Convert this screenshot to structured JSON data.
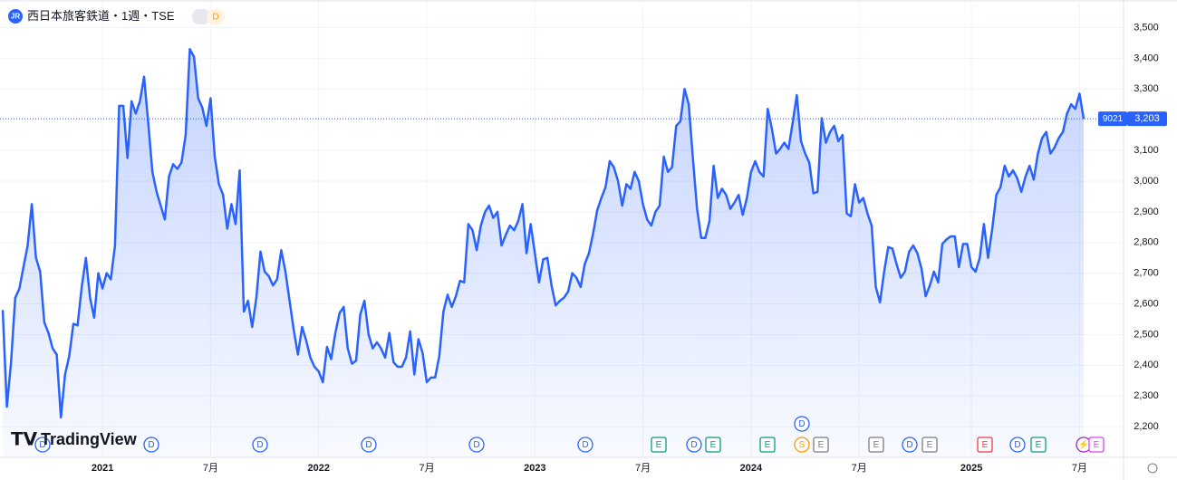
{
  "header": {
    "icon": "JR",
    "title": "西日本旅客鉄道・1週・TSE",
    "badge": "D"
  },
  "watermark": "TradingView",
  "chart_data": {
    "type": "area",
    "categories": [
      null,
      null,
      null,
      null,
      null,
      null,
      null,
      null,
      null,
      null,
      null,
      null,
      null,
      null,
      null,
      null,
      null,
      null,
      null,
      null,
      null,
      null,
      null,
      null,
      "2021",
      null,
      null,
      null,
      null,
      null,
      null,
      null,
      null,
      null,
      null,
      null,
      null,
      null,
      null,
      null,
      null,
      null,
      null,
      null,
      null,
      null,
      null,
      null,
      null,
      null,
      "7月",
      null,
      null,
      null,
      null,
      null,
      null,
      null,
      null,
      null,
      null,
      null,
      null,
      null,
      null,
      null,
      null,
      null,
      null,
      null,
      null,
      null,
      null,
      null,
      null,
      null,
      "2022",
      null,
      null,
      null,
      null,
      null,
      null,
      null,
      null,
      null,
      null,
      null,
      null,
      null,
      null,
      null,
      null,
      null,
      null,
      null,
      null,
      null,
      null,
      null,
      null,
      null,
      "7月",
      null,
      null,
      null,
      null,
      null,
      null,
      null,
      null,
      null,
      null,
      null,
      null,
      null,
      null,
      null,
      null,
      null,
      null,
      null,
      null,
      null,
      null,
      null,
      null,
      null,
      "2023",
      null,
      null,
      null,
      null,
      null,
      null,
      null,
      null,
      null,
      null,
      null,
      null,
      null,
      null,
      null,
      null,
      null,
      null,
      null,
      null,
      null,
      null,
      null,
      null,
      null,
      "7月",
      null,
      null,
      null,
      null,
      null,
      null,
      null,
      null,
      null,
      null,
      null,
      null,
      null,
      null,
      null,
      null,
      null,
      null,
      null,
      null,
      null,
      null,
      null,
      null,
      null,
      "2024",
      null,
      null,
      null,
      null,
      null,
      null,
      null,
      null,
      null,
      null,
      null,
      null,
      null,
      null,
      null,
      null,
      null,
      null,
      null,
      null,
      null,
      null,
      null,
      null,
      null,
      "7月",
      null,
      null,
      null,
      null,
      null,
      null,
      null,
      null,
      null,
      null,
      null,
      null,
      null,
      null,
      null,
      null,
      null,
      null,
      null,
      null,
      null,
      null,
      null,
      null,
      null,
      null,
      "2025",
      null,
      null,
      null,
      null,
      null,
      null,
      null,
      null,
      null,
      null,
      null,
      null,
      null,
      null,
      null,
      null,
      null,
      null,
      null,
      null,
      null,
      null,
      null,
      null,
      null,
      "7月",
      null
    ],
    "series": [
      {
        "name": "9021",
        "color": "#2962ff",
        "values": [
          2580,
          2265,
          2410,
          2620,
          2650,
          2720,
          2790,
          2925,
          2750,
          2705,
          2540,
          2505,
          2455,
          2435,
          2230,
          2370,
          2430,
          2535,
          2530,
          2655,
          2750,
          2620,
          2555,
          2700,
          2650,
          2700,
          2680,
          2790,
          3245,
          3245,
          3075,
          3260,
          3220,
          3260,
          3340,
          3190,
          3030,
          2965,
          2920,
          2875,
          3015,
          3055,
          3040,
          3060,
          3150,
          3430,
          3405,
          3270,
          3240,
          3180,
          3270,
          3080,
          2990,
          2955,
          2845,
          2925,
          2860,
          3035,
          2575,
          2610,
          2525,
          2620,
          2770,
          2705,
          2690,
          2660,
          2680,
          2775,
          2705,
          2610,
          2515,
          2435,
          2525,
          2480,
          2425,
          2395,
          2380,
          2345,
          2460,
          2420,
          2505,
          2570,
          2590,
          2455,
          2405,
          2415,
          2565,
          2610,
          2500,
          2455,
          2475,
          2455,
          2425,
          2505,
          2410,
          2395,
          2395,
          2425,
          2510,
          2370,
          2485,
          2440,
          2345,
          2360,
          2360,
          2430,
          2575,
          2630,
          2590,
          2625,
          2675,
          2670,
          2860,
          2840,
          2775,
          2855,
          2900,
          2920,
          2880,
          2900,
          2790,
          2825,
          2855,
          2840,
          2870,
          2925,
          2765,
          2860,
          2765,
          2670,
          2745,
          2750,
          2660,
          2595,
          2610,
          2620,
          2640,
          2700,
          2685,
          2655,
          2730,
          2765,
          2830,
          2905,
          2945,
          2980,
          3065,
          3045,
          3000,
          2920,
          2990,
          2975,
          3030,
          3000,
          2925,
          2875,
          2855,
          2900,
          2920,
          3080,
          3030,
          3045,
          3180,
          3195,
          3300,
          3250,
          3075,
          2910,
          2815,
          2815,
          2870,
          3050,
          2945,
          2975,
          2955,
          2910,
          2930,
          2955,
          2890,
          2945,
          3030,
          3065,
          3030,
          3015,
          3235,
          3170,
          3090,
          3105,
          3125,
          3105,
          3190,
          3280,
          3130,
          3090,
          3060,
          2960,
          2965,
          3205,
          3125,
          3160,
          3180,
          3130,
          3150,
          2895,
          2885,
          2990,
          2930,
          2945,
          2895,
          2855,
          2655,
          2605,
          2705,
          2785,
          2780,
          2730,
          2685,
          2705,
          2770,
          2790,
          2765,
          2715,
          2625,
          2660,
          2705,
          2670,
          2795,
          2810,
          2820,
          2820,
          2720,
          2795,
          2795,
          2720,
          2705,
          2750,
          2860,
          2750,
          2845,
          2955,
          2980,
          3050,
          3015,
          3035,
          3010,
          2965,
          3015,
          3050,
          3005,
          3090,
          3140,
          3160,
          3090,
          3110,
          3140,
          3160,
          3220,
          3250,
          3235,
          3285,
          3203
        ]
      }
    ],
    "price_line": {
      "value": 3203,
      "label": "3,203"
    },
    "ylim": [
      2100,
      3590
    ],
    "yticks": [
      {
        "value": 2200,
        "label": "2,200"
      },
      {
        "value": 2300,
        "label": "2,300"
      },
      {
        "value": 2400,
        "label": "2,400"
      },
      {
        "value": 2500,
        "label": "2,500"
      },
      {
        "value": 2600,
        "label": "2,600"
      },
      {
        "value": 2700,
        "label": "2,700"
      },
      {
        "value": 2800,
        "label": "2,800"
      },
      {
        "value": 2900,
        "label": "2,900"
      },
      {
        "value": 3000,
        "label": "3,000"
      },
      {
        "value": 3100,
        "label": "3,100"
      },
      {
        "value": 3200,
        "label": "3,200"
      },
      {
        "value": 3300,
        "label": "3,300"
      },
      {
        "value": 3400,
        "label": "3,400"
      },
      {
        "value": 3500,
        "label": "3,500"
      }
    ],
    "grid": true,
    "events": [
      {
        "label": "D",
        "shape": "circle",
        "color": "#2962ff"
      },
      {
        "label": "D",
        "shape": "circle",
        "color": "#2962ff"
      },
      {
        "label": "D",
        "shape": "circle",
        "color": "#2962ff"
      },
      {
        "label": "D",
        "shape": "circle",
        "color": "#2962ff"
      },
      {
        "label": "D",
        "shape": "circle",
        "color": "#2962ff"
      },
      {
        "label": "D",
        "shape": "circle",
        "color": "#2962ff"
      },
      {
        "label": "E",
        "shape": "square",
        "color": "#089981"
      },
      {
        "label": "D",
        "shape": "circle",
        "color": "#2962ff"
      },
      {
        "label": "E",
        "shape": "square",
        "color": "#089981"
      },
      {
        "label": "E",
        "shape": "square",
        "color": "#089981"
      },
      {
        "label": "D",
        "shape": "circle",
        "color": "#2962ff"
      },
      {
        "label": "S",
        "shape": "circle",
        "color": "#ff9800"
      },
      {
        "label": "E",
        "shape": "square",
        "color": "#787b86"
      },
      {
        "label": "E",
        "shape": "square",
        "color": "#787b86"
      },
      {
        "label": "D",
        "shape": "circle",
        "color": "#2962ff"
      },
      {
        "label": "E",
        "shape": "square",
        "color": "#787b86"
      },
      {
        "label": "E",
        "shape": "square",
        "color": "#f23645"
      },
      {
        "label": "D",
        "shape": "circle",
        "color": "#2962ff"
      },
      {
        "label": "E",
        "shape": "square",
        "color": "#089981"
      },
      {
        "label": "⚡",
        "shape": "circle",
        "color": "#9c27b0"
      },
      {
        "label": "E",
        "shape": "square",
        "color": "#e040fb"
      }
    ]
  }
}
